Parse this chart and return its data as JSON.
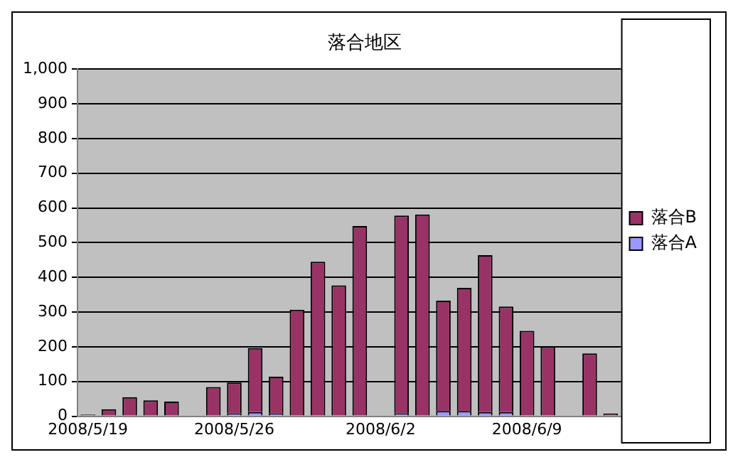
{
  "chart_data": {
    "type": "bar",
    "title": "落合地区",
    "stacked": true,
    "categories": [
      "2008/5/19",
      null,
      null,
      null,
      null,
      null,
      null,
      "2008/5/26",
      null,
      null,
      null,
      null,
      null,
      null,
      "2008/6/2",
      null,
      null,
      null,
      null,
      null,
      null,
      "2008/6/9",
      null,
      null,
      null,
      null
    ],
    "series": [
      {
        "name": "落合A",
        "color": "#9999ff",
        "values": [
          5,
          null,
          null,
          null,
          null,
          null,
          null,
          8,
          12,
          8,
          null,
          null,
          null,
          null,
          null,
          8,
          null,
          15,
          15,
          12,
          12,
          null,
          null,
          null,
          null,
          null
        ]
      },
      {
        "name": "落合B",
        "color": "#993366",
        "values": [
          null,
          20,
          55,
          46,
          42,
          null,
          84,
          89,
          184,
          106,
          307,
          445,
          377,
          548,
          null,
          570,
          581,
          318,
          355,
          452,
          304,
          246,
          201,
          null,
          181,
          8
        ]
      }
    ],
    "ylim": [
      0,
      1000
    ],
    "yticks": [
      0,
      100,
      200,
      300,
      400,
      500,
      600,
      700,
      800,
      900,
      {
        "value": 1000,
        "label": "1,000"
      }
    ],
    "grid": "y",
    "legend": "right"
  }
}
